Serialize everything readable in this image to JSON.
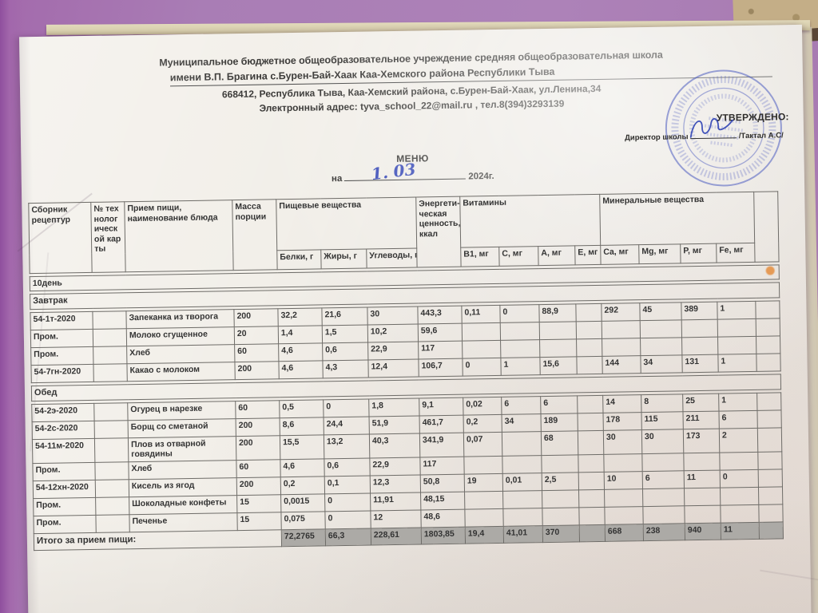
{
  "colors": {
    "wall": "#a97db5",
    "wall_edge": "#8f4f9e",
    "rail": "#d8cfae",
    "brick": "#c4ae87",
    "brick_shadow": "#5a4636",
    "backing": "#d8d1c0",
    "paper": "#f2efe9",
    "text": "#2e2d2b",
    "table_border": "#6e6c68",
    "cell_shade": "#acaaa6",
    "stamp_blue": "#4f5ec0",
    "ink_blue": "#2f42b5",
    "accent_dot": "#e59a55"
  },
  "header": {
    "org_line1": "Муниципальное бюджетное общеобразовательное учреждение средняя общеобразовательная школа",
    "org_line2": "имени В.П. Брагина с.Бурен-Бай-Хаак Каа-Хемского района Республики Тыва",
    "address": "668412, Республика Тыва, Каа-Хемский района, с.Бурен-Бай-Хаак, ул.Ленина,34",
    "contact": "Электронный адрес: tyva_school_22@mail.ru , тел.8(394)3293139"
  },
  "approval": {
    "approved_label": "УТВЕРЖДЕНО:",
    "director_label": "Директор школы",
    "director_name": "/Тактал А.С/"
  },
  "menu": {
    "title": "МЕНЮ",
    "date_prefix": "на",
    "date_handwritten": "1. 03",
    "date_suffix": "2024г."
  },
  "table": {
    "group_headers": {
      "nutrients": "Пищевые вещества",
      "energy": "Энергети-ческая ценность, ккал",
      "vitamins": "Витамины",
      "minerals": "Минеральные вещества"
    },
    "col_headers": {
      "recipe_book": "Сборник рецептур",
      "tech_card": "№ технологической карты",
      "meal": "Прием пищи, наименование блюда",
      "mass": "Масса порции",
      "protein": "Белки, г",
      "fat": "Жиры, г",
      "carbs": "Углеводы, г",
      "b1": "В1, мг",
      "c": "С, мг",
      "a": "А, мг",
      "e": "Е, мг",
      "ca": "Ca, мг",
      "mg": "Mg, мг",
      "p": "P, мг",
      "fe": "Fe, мг"
    },
    "day_label": "10день",
    "breakfast_label": "Завтрак",
    "lunch_label": "Обед",
    "breakfast_rows": [
      [
        "54-1т-2020",
        "",
        "Запеканка из творога",
        "200",
        "32,2",
        "21,6",
        "30",
        "443,3",
        "0,11",
        "0",
        "88,9",
        "",
        "292",
        "45",
        "389",
        "1"
      ],
      [
        "Пром.",
        "",
        "Молоко сгущенное",
        "20",
        "1,4",
        "1,5",
        "10,2",
        "59,6",
        "",
        "",
        "",
        "",
        "",
        "",
        "",
        ""
      ],
      [
        "Пром.",
        "",
        "Хлеб",
        "60",
        "4,6",
        "0,6",
        "22,9",
        "117",
        "",
        "",
        "",
        "",
        "",
        "",
        "",
        ""
      ],
      [
        "54-7гн-2020",
        "",
        "Какао с молоком",
        "200",
        "4,6",
        "4,3",
        "12,4",
        "106,7",
        "0",
        "1",
        "15,6",
        "",
        "144",
        "34",
        "131",
        "1"
      ]
    ],
    "lunch_rows": [
      [
        "54-2э-2020",
        "",
        "Огурец в нарезке",
        "60",
        "0,5",
        "0",
        "1,8",
        "9,1",
        "0,02",
        "6",
        "6",
        "",
        "14",
        "8",
        "25",
        "1"
      ],
      [
        "54-2с-2020",
        "",
        "Борщ со сметаной",
        "200",
        "8,6",
        "24,4",
        "51,9",
        "461,7",
        "0,2",
        "34",
        "189",
        "",
        "178",
        "115",
        "211",
        "6"
      ],
      [
        "54-11м-2020",
        "",
        "Плов из отварной говядины",
        "200",
        "15,5",
        "13,2",
        "40,3",
        "341,9",
        "0,07",
        "",
        "68",
        "",
        "30",
        "30",
        "173",
        "2"
      ],
      [
        "Пром.",
        "",
        "Хлеб",
        "60",
        "4,6",
        "0,6",
        "22,9",
        "117",
        "",
        "",
        "",
        "",
        "",
        "",
        "",
        ""
      ],
      [
        "54-12хн-2020",
        "",
        "Кисель из ягод",
        "200",
        "0,2",
        "0,1",
        "12,3",
        "50,8",
        "19",
        "0,01",
        "2,5",
        "",
        "10",
        "6",
        "11",
        "0"
      ],
      [
        "Пром.",
        "",
        "Шоколадные конфеты",
        "15",
        "0,0015",
        "0",
        "11,91",
        "48,15",
        "",
        "",
        "",
        "",
        "",
        "",
        "",
        ""
      ],
      [
        "Пром.",
        "",
        "Печенье",
        "15",
        "0,075",
        "0",
        "12",
        "48,6",
        "",
        "",
        "",
        "",
        "",
        "",
        "",
        ""
      ]
    ],
    "total": {
      "label": "Итого за прием пищи:",
      "values": [
        "72,2765",
        "66,3",
        "228,61",
        "1803,85",
        "19,4",
        "41,01",
        "370",
        "",
        "668",
        "238",
        "940",
        "11"
      ]
    }
  }
}
